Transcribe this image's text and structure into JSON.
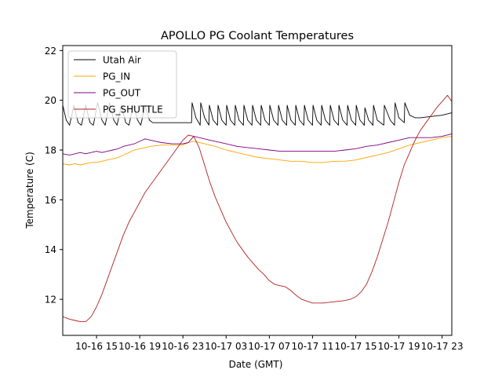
{
  "chart_data": {
    "type": "line",
    "title": "APOLLO PG Coolant Temperatures",
    "xlabel": "Date (GMT)",
    "ylabel": "Temperature (C)",
    "x_units": "hours since 10-16 00:00 GMT",
    "xlim": [
      11.87,
      47.9
    ],
    "ylim": [
      10.55,
      22.2
    ],
    "grid": false,
    "legend_position": "top-left",
    "x_ticks": [
      {
        "value": 15,
        "label": "10-16 15"
      },
      {
        "value": 19,
        "label": "10-16 19"
      },
      {
        "value": 23,
        "label": "10-16 23"
      },
      {
        "value": 27,
        "label": "10-17 03"
      },
      {
        "value": 31,
        "label": "10-17 07"
      },
      {
        "value": 35,
        "label": "10-17 11"
      },
      {
        "value": 39,
        "label": "10-17 15"
      },
      {
        "value": 43,
        "label": "10-17 19"
      },
      {
        "value": 47,
        "label": "10-17 23"
      }
    ],
    "y_ticks": [
      {
        "value": 12,
        "label": "12"
      },
      {
        "value": 14,
        "label": "14"
      },
      {
        "value": 16,
        "label": "16"
      },
      {
        "value": 18,
        "label": "18"
      },
      {
        "value": 20,
        "label": "20"
      },
      {
        "value": 22,
        "label": "22"
      }
    ],
    "series": [
      {
        "name": "Utah Air",
        "color": "#000000",
        "x": [
          11.87,
          12.2,
          12.5,
          12.9,
          13.3,
          13.6,
          14.0,
          14.4,
          14.7,
          15.1,
          15.5,
          15.8,
          16.2,
          16.6,
          16.9,
          17.3,
          17.7,
          18.0,
          18.4,
          18.8,
          19.1,
          19.5,
          19.9,
          20.2,
          21.0,
          22.0,
          23.0,
          23.8,
          23.85,
          24.2,
          24.6,
          24.65,
          25.0,
          25.4,
          25.45,
          25.8,
          26.2,
          26.25,
          26.6,
          27.0,
          27.05,
          27.4,
          27.8,
          27.85,
          28.2,
          28.6,
          28.65,
          29.0,
          29.4,
          29.45,
          29.8,
          30.2,
          30.25,
          30.6,
          31.0,
          31.05,
          31.4,
          31.8,
          31.85,
          32.2,
          32.6,
          32.65,
          33.0,
          33.4,
          33.45,
          33.8,
          34.2,
          34.25,
          34.6,
          35.0,
          35.05,
          35.4,
          35.8,
          35.85,
          36.2,
          36.6,
          36.65,
          37.0,
          37.4,
          37.45,
          37.8,
          38.2,
          38.25,
          38.6,
          39.0,
          39.05,
          39.4,
          39.8,
          39.85,
          40.2,
          40.6,
          40.65,
          41.0,
          41.6,
          41.65,
          42.2,
          42.6,
          42.65,
          43.0,
          43.5,
          43.55,
          44.0,
          44.5,
          45.0,
          46.0,
          47.0,
          47.9
        ],
        "y": [
          19.8,
          19.2,
          19.0,
          19.8,
          19.1,
          19.0,
          19.8,
          19.1,
          19.0,
          19.9,
          19.2,
          19.0,
          19.9,
          19.2,
          19.0,
          19.8,
          19.1,
          19.0,
          19.8,
          19.2,
          19.0,
          19.8,
          19.2,
          19.1,
          19.1,
          19.1,
          19.1,
          19.1,
          19.9,
          19.3,
          19.0,
          19.9,
          19.3,
          19.0,
          19.8,
          19.2,
          19.0,
          19.8,
          19.2,
          19.0,
          19.8,
          19.2,
          19.0,
          19.8,
          19.2,
          19.0,
          19.8,
          19.2,
          19.0,
          19.8,
          19.2,
          19.0,
          19.8,
          19.2,
          19.0,
          19.8,
          19.2,
          19.0,
          19.8,
          19.2,
          19.0,
          19.8,
          19.2,
          19.0,
          19.8,
          19.2,
          19.0,
          19.8,
          19.2,
          19.0,
          19.8,
          19.2,
          19.0,
          19.8,
          19.2,
          19.0,
          19.8,
          19.2,
          19.0,
          19.8,
          19.2,
          19.0,
          19.8,
          19.2,
          19.0,
          19.8,
          19.2,
          19.0,
          19.7,
          19.2,
          19.0,
          19.8,
          19.2,
          19.0,
          19.8,
          19.2,
          19.0,
          19.9,
          19.3,
          19.1,
          19.9,
          19.4,
          19.3,
          19.3,
          19.35,
          19.4,
          19.5
        ]
      },
      {
        "name": "PG_IN",
        "color": "#ffa500",
        "x": [
          11.87,
          12.5,
          13.0,
          13.5,
          14.0,
          14.5,
          15.0,
          15.5,
          16.0,
          16.5,
          17.0,
          17.5,
          18.0,
          18.5,
          19.0,
          19.5,
          20.0,
          21.0,
          22.0,
          23.0,
          23.5,
          24.0,
          24.5,
          25.0,
          26.0,
          27.0,
          28.0,
          29.0,
          30.0,
          31.0,
          32.0,
          33.0,
          34.0,
          35.0,
          36.0,
          37.0,
          38.0,
          39.0,
          40.0,
          41.0,
          42.0,
          43.0,
          44.0,
          45.0,
          46.0,
          47.0,
          47.9
        ],
        "y": [
          17.45,
          17.4,
          17.45,
          17.4,
          17.45,
          17.5,
          17.5,
          17.55,
          17.6,
          17.65,
          17.7,
          17.8,
          17.9,
          18.0,
          18.05,
          18.1,
          18.15,
          18.2,
          18.2,
          18.2,
          18.3,
          18.35,
          18.3,
          18.25,
          18.15,
          18.0,
          17.9,
          17.8,
          17.7,
          17.65,
          17.6,
          17.55,
          17.55,
          17.5,
          17.5,
          17.55,
          17.55,
          17.6,
          17.7,
          17.8,
          17.9,
          18.05,
          18.2,
          18.3,
          18.4,
          18.5,
          18.55
        ]
      },
      {
        "name": "PG_OUT",
        "color": "#800080",
        "x": [
          11.87,
          12.5,
          13.0,
          13.5,
          14.0,
          14.5,
          15.0,
          15.5,
          16.0,
          16.5,
          17.0,
          17.5,
          18.0,
          18.5,
          19.0,
          19.5,
          20.0,
          20.5,
          21.0,
          22.0,
          23.0,
          23.5,
          24.0,
          24.5,
          25.0,
          25.5,
          26.0,
          27.0,
          28.0,
          29.0,
          30.0,
          31.0,
          32.0,
          33.0,
          34.0,
          35.0,
          36.0,
          37.0,
          38.0,
          39.0,
          40.0,
          41.0,
          42.0,
          43.0,
          44.0,
          45.0,
          46.0,
          47.0,
          47.9
        ],
        "y": [
          17.85,
          17.8,
          17.85,
          17.9,
          17.85,
          17.9,
          17.95,
          17.9,
          17.95,
          18.0,
          18.05,
          18.15,
          18.2,
          18.25,
          18.35,
          18.45,
          18.4,
          18.35,
          18.3,
          18.25,
          18.25,
          18.3,
          18.55,
          18.5,
          18.45,
          18.4,
          18.35,
          18.25,
          18.15,
          18.1,
          18.05,
          18.0,
          17.95,
          17.95,
          17.95,
          17.95,
          17.95,
          17.95,
          18.0,
          18.05,
          18.15,
          18.2,
          18.3,
          18.4,
          18.5,
          18.5,
          18.5,
          18.55,
          18.65
        ]
      },
      {
        "name": "PG_SHUTTLE",
        "color": "#b22222",
        "x": [
          11.87,
          12.5,
          13.0,
          13.5,
          14.0,
          14.5,
          15.0,
          15.5,
          16.0,
          16.5,
          17.0,
          17.5,
          18.0,
          18.5,
          19.0,
          19.5,
          20.0,
          20.5,
          21.0,
          21.5,
          22.0,
          22.5,
          23.0,
          23.5,
          24.0,
          24.5,
          25.0,
          25.5,
          26.0,
          27.0,
          28.0,
          29.0,
          30.0,
          30.5,
          31.0,
          31.5,
          32.0,
          32.5,
          33.0,
          33.5,
          34.0,
          35.0,
          36.0,
          37.0,
          38.0,
          38.5,
          39.0,
          39.5,
          40.0,
          40.5,
          41.0,
          41.5,
          42.0,
          42.5,
          43.0,
          43.5,
          44.0,
          44.5,
          45.0,
          45.5,
          46.0,
          46.5,
          47.0,
          47.5,
          47.9
        ],
        "y": [
          11.3,
          11.2,
          11.15,
          11.1,
          11.1,
          11.3,
          11.7,
          12.2,
          12.8,
          13.4,
          14.0,
          14.6,
          15.1,
          15.5,
          15.9,
          16.3,
          16.6,
          16.9,
          17.2,
          17.5,
          17.8,
          18.1,
          18.4,
          18.6,
          18.55,
          18.1,
          17.4,
          16.7,
          16.1,
          15.1,
          14.3,
          13.7,
          13.2,
          13.0,
          12.75,
          12.6,
          12.55,
          12.5,
          12.35,
          12.15,
          12.0,
          11.85,
          11.85,
          11.9,
          11.95,
          12.0,
          12.1,
          12.3,
          12.6,
          13.1,
          13.7,
          14.4,
          15.1,
          15.9,
          16.7,
          17.4,
          17.9,
          18.4,
          18.8,
          19.1,
          19.4,
          19.7,
          19.95,
          20.2,
          19.95
        ]
      }
    ]
  }
}
